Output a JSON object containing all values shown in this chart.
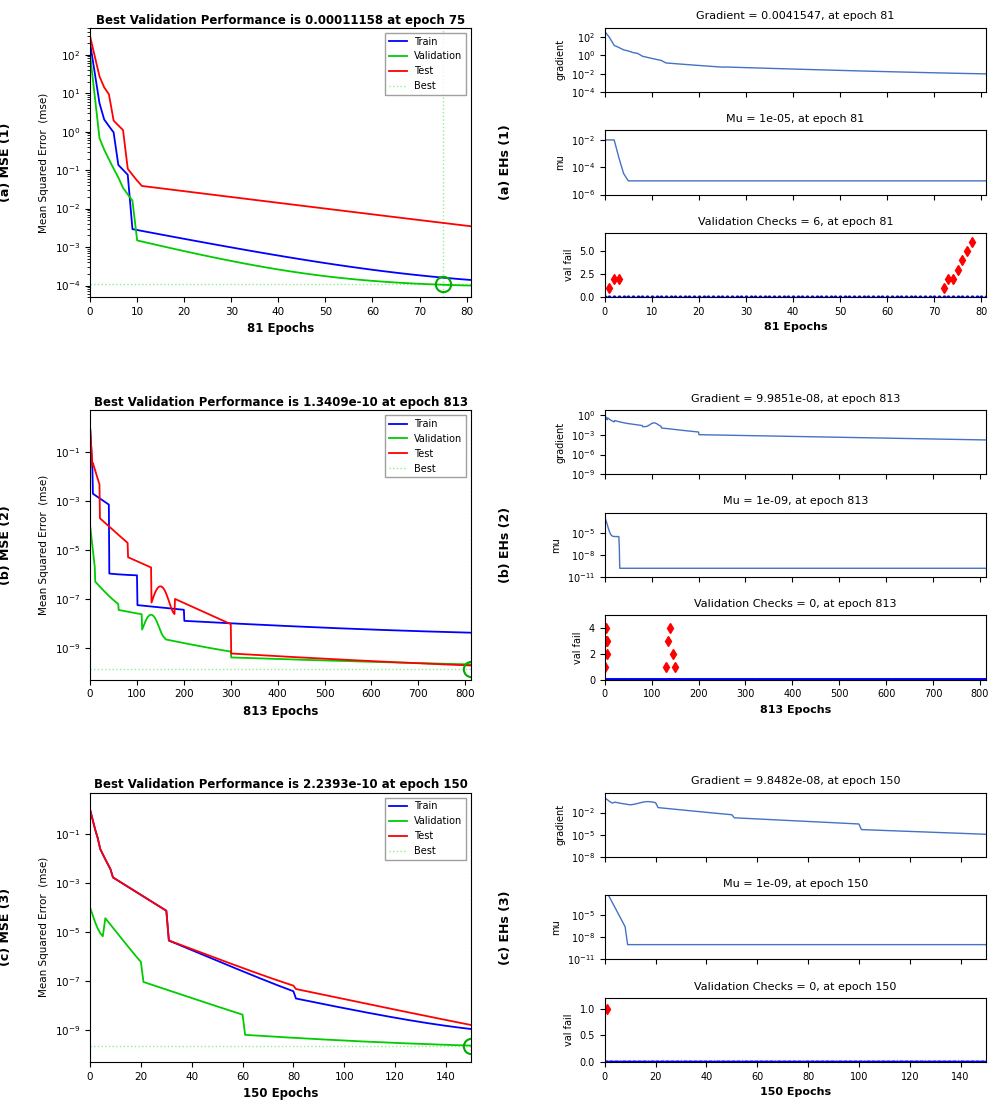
{
  "panel_a_mse": {
    "title": "Best Validation Performance is 0.00011158 at epoch 75",
    "xlabel": "81 Epochs",
    "ylabel": "Mean Squared Error  (mse)",
    "best_val": 0.00011158,
    "best_epoch": 75,
    "total_epochs": 81,
    "xlim": [
      0,
      81
    ],
    "ylim": [
      5e-05,
      500
    ],
    "side_label": "(a) MSE (1)"
  },
  "panel_b_mse": {
    "title": "Best Validation Performance is 1.3409e-10 at epoch 813",
    "xlabel": "813 Epochs",
    "ylabel": "Mean Squared Error  (mse)",
    "best_val": 1.3409e-10,
    "best_epoch": 813,
    "total_epochs": 813,
    "xlim": [
      0,
      813
    ],
    "ylim": [
      5e-11,
      5
    ],
    "side_label": "(b) MSE (2)"
  },
  "panel_c_mse": {
    "title": "Best Validation Performance is 2.2393e-10 at epoch 150",
    "xlabel": "150 Epochs",
    "ylabel": "Mean Squared Error  (mse)",
    "best_val": 2.2393e-10,
    "best_epoch": 150,
    "total_epochs": 150,
    "xlim": [
      0,
      150
    ],
    "ylim": [
      5e-11,
      5
    ],
    "side_label": "(c) MSE (3)"
  },
  "panel_a_ehs": {
    "grad_title": "Gradient = 0.0041547, at epoch 81",
    "mu_title": "Mu = 1e-05, at epoch 81",
    "vc_title": "Validation Checks = 6, at epoch 81",
    "xlabel": "81 Epochs",
    "grad_ylim": [
      0.0001,
      1000.0
    ],
    "mu_ylim": [
      1e-06,
      0.05
    ],
    "vc_ylim": [
      0,
      7
    ],
    "total_epochs": 81,
    "side_label": "(a) EHs (1)"
  },
  "panel_b_ehs": {
    "grad_title": "Gradient = 9.9851e-08, at epoch 813",
    "mu_title": "Mu = 1e-09, at epoch 813",
    "vc_title": "Validation Checks = 0, at epoch 813",
    "xlabel": "813 Epochs",
    "grad_ylim": [
      1e-09,
      5
    ],
    "mu_ylim": [
      1e-11,
      0.005
    ],
    "vc_ylim": [
      0,
      5
    ],
    "total_epochs": 813,
    "side_label": "(b) EHs (2)"
  },
  "panel_c_ehs": {
    "grad_title": "Gradient = 9.8482e-08, at epoch 150",
    "mu_title": "Mu = 1e-09, at epoch 150",
    "vc_title": "Validation Checks = 0, at epoch 150",
    "xlabel": "150 Epochs",
    "grad_ylim": [
      1e-08,
      5
    ],
    "mu_ylim": [
      1e-11,
      0.005
    ],
    "vc_ylim": [
      0,
      1.2
    ],
    "total_epochs": 150,
    "side_label": "(c) EHs (3)"
  },
  "colors": {
    "train": "#0000FF",
    "validation": "#00CC00",
    "test": "#FF0000",
    "best": "#90EE90",
    "ehs_line": "#4472C4"
  }
}
